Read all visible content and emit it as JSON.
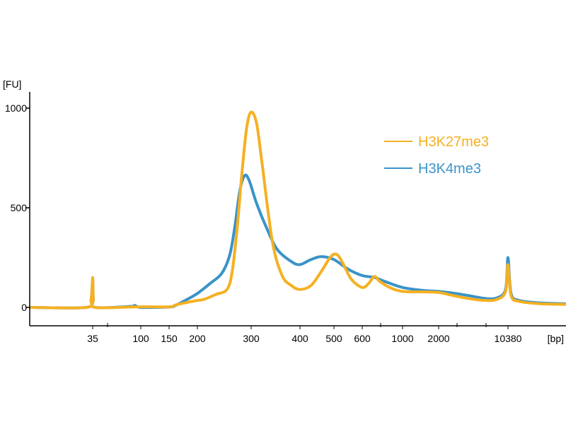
{
  "chart_data": {
    "type": "line",
    "ylabel": "[FU]",
    "xlabel": "[bp]",
    "ylim": [
      -90,
      1080
    ],
    "y_ticks": [
      {
        "value": 0,
        "label": "0"
      },
      {
        "value": 500,
        "label": "500"
      },
      {
        "value": 1000,
        "label": "1000"
      }
    ],
    "x_ticks": [
      "35",
      "100",
      "150",
      "200",
      "300",
      "400",
      "500",
      "600",
      "1000",
      "2000",
      "10380"
    ],
    "x_axis": "bp (nonlinear electropherogram sizing scale)",
    "legend": {
      "position": "top-right"
    },
    "series": [
      {
        "name": "H3K27me3",
        "color": "#F5B022",
        "points": [
          {
            "bp": 20,
            "fu": 0
          },
          {
            "bp": 33,
            "fu": 0
          },
          {
            "bp": 34.5,
            "fu": 40
          },
          {
            "bp": 35,
            "fu": 150
          },
          {
            "bp": 35.5,
            "fu": 40
          },
          {
            "bp": 37,
            "fu": 0
          },
          {
            "bp": 90,
            "fu": 3
          },
          {
            "bp": 150,
            "fu": 3
          },
          {
            "bp": 160,
            "fu": 12
          },
          {
            "bp": 180,
            "fu": 25
          },
          {
            "bp": 200,
            "fu": 35
          },
          {
            "bp": 210,
            "fu": 40
          },
          {
            "bp": 230,
            "fu": 65
          },
          {
            "bp": 250,
            "fu": 90
          },
          {
            "bp": 260,
            "fu": 180
          },
          {
            "bp": 270,
            "fu": 400
          },
          {
            "bp": 280,
            "fu": 680
          },
          {
            "bp": 290,
            "fu": 900
          },
          {
            "bp": 300,
            "fu": 980
          },
          {
            "bp": 310,
            "fu": 920
          },
          {
            "bp": 320,
            "fu": 720
          },
          {
            "bp": 340,
            "fu": 330
          },
          {
            "bp": 360,
            "fu": 160
          },
          {
            "bp": 380,
            "fu": 110
          },
          {
            "bp": 400,
            "fu": 90
          },
          {
            "bp": 430,
            "fu": 110
          },
          {
            "bp": 460,
            "fu": 180
          },
          {
            "bp": 490,
            "fu": 255
          },
          {
            "bp": 510,
            "fu": 265
          },
          {
            "bp": 530,
            "fu": 220
          },
          {
            "bp": 560,
            "fu": 140
          },
          {
            "bp": 600,
            "fu": 100
          },
          {
            "bp": 650,
            "fu": 120
          },
          {
            "bp": 700,
            "fu": 155
          },
          {
            "bp": 750,
            "fu": 130
          },
          {
            "bp": 850,
            "fu": 100
          },
          {
            "bp": 1000,
            "fu": 80
          },
          {
            "bp": 1500,
            "fu": 78
          },
          {
            "bp": 2000,
            "fu": 75
          },
          {
            "bp": 2800,
            "fu": 60
          },
          {
            "bp": 4000,
            "fu": 45
          },
          {
            "bp": 6000,
            "fu": 35
          },
          {
            "bp": 8000,
            "fu": 40
          },
          {
            "bp": 9800,
            "fu": 80
          },
          {
            "bp": 10380,
            "fu": 215
          },
          {
            "bp": 10800,
            "fu": 60
          },
          {
            "bp": 12000,
            "fu": 30
          },
          {
            "bp": 16000,
            "fu": 18
          },
          {
            "bp": 22000,
            "fu": 15
          }
        ]
      },
      {
        "name": "H3K4me3",
        "color": "#3A93C8",
        "points": [
          {
            "bp": 20,
            "fu": 0
          },
          {
            "bp": 33,
            "fu": 0
          },
          {
            "bp": 34.5,
            "fu": 40
          },
          {
            "bp": 35,
            "fu": 135
          },
          {
            "bp": 35.5,
            "fu": 40
          },
          {
            "bp": 37,
            "fu": 0
          },
          {
            "bp": 80,
            "fu": 5
          },
          {
            "bp": 88,
            "fu": 10
          },
          {
            "bp": 100,
            "fu": 0
          },
          {
            "bp": 150,
            "fu": 2
          },
          {
            "bp": 160,
            "fu": 10
          },
          {
            "bp": 180,
            "fu": 40
          },
          {
            "bp": 200,
            "fu": 70
          },
          {
            "bp": 220,
            "fu": 120
          },
          {
            "bp": 240,
            "fu": 170
          },
          {
            "bp": 255,
            "fu": 260
          },
          {
            "bp": 265,
            "fu": 400
          },
          {
            "bp": 275,
            "fu": 580
          },
          {
            "bp": 285,
            "fu": 660
          },
          {
            "bp": 295,
            "fu": 640
          },
          {
            "bp": 310,
            "fu": 520
          },
          {
            "bp": 330,
            "fu": 390
          },
          {
            "bp": 350,
            "fu": 290
          },
          {
            "bp": 380,
            "fu": 230
          },
          {
            "bp": 400,
            "fu": 215
          },
          {
            "bp": 430,
            "fu": 240
          },
          {
            "bp": 460,
            "fu": 255
          },
          {
            "bp": 500,
            "fu": 240
          },
          {
            "bp": 550,
            "fu": 190
          },
          {
            "bp": 600,
            "fu": 160
          },
          {
            "bp": 700,
            "fu": 150
          },
          {
            "bp": 800,
            "fu": 130
          },
          {
            "bp": 1000,
            "fu": 100
          },
          {
            "bp": 1500,
            "fu": 85
          },
          {
            "bp": 2000,
            "fu": 80
          },
          {
            "bp": 2800,
            "fu": 72
          },
          {
            "bp": 4000,
            "fu": 60
          },
          {
            "bp": 6000,
            "fu": 45
          },
          {
            "bp": 8000,
            "fu": 48
          },
          {
            "bp": 9800,
            "fu": 90
          },
          {
            "bp": 10380,
            "fu": 250
          },
          {
            "bp": 10800,
            "fu": 70
          },
          {
            "bp": 12000,
            "fu": 35
          },
          {
            "bp": 16000,
            "fu": 22
          },
          {
            "bp": 22000,
            "fu": 18
          }
        ]
      }
    ]
  }
}
